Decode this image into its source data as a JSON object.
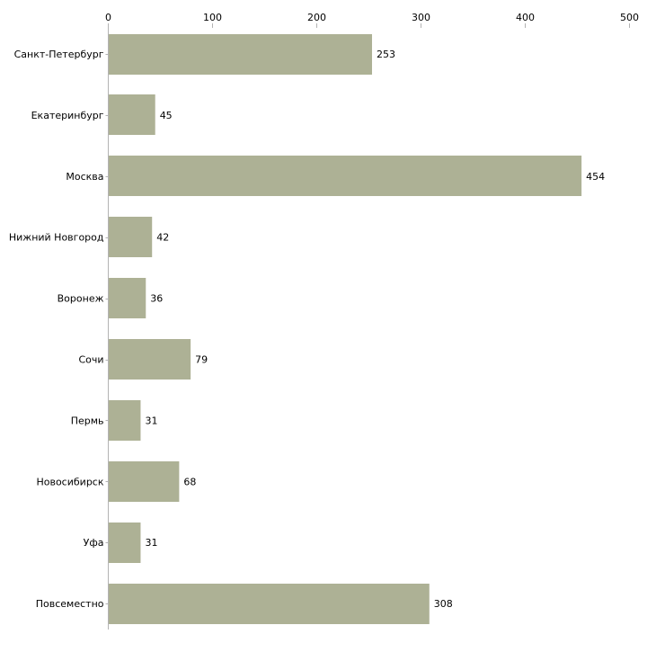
{
  "chart_data": {
    "type": "bar",
    "orientation": "horizontal",
    "title": "",
    "xlabel": "",
    "ylabel": "",
    "xlim": [
      0,
      500
    ],
    "x_ticks": [
      0,
      100,
      200,
      300,
      400,
      500
    ],
    "x_axis_position": "top",
    "grid": false,
    "legend": "none",
    "bar_color": "#adb195",
    "categories": [
      "Санкт-Петербург",
      "Екатеринбург",
      "Москва",
      "Нижний Новгород",
      "Воронеж",
      "Сочи",
      "Пермь",
      "Новосибирск",
      "Уфа",
      "Повсеместно"
    ],
    "values": [
      253,
      45,
      454,
      42,
      36,
      79,
      31,
      68,
      31,
      308
    ]
  }
}
